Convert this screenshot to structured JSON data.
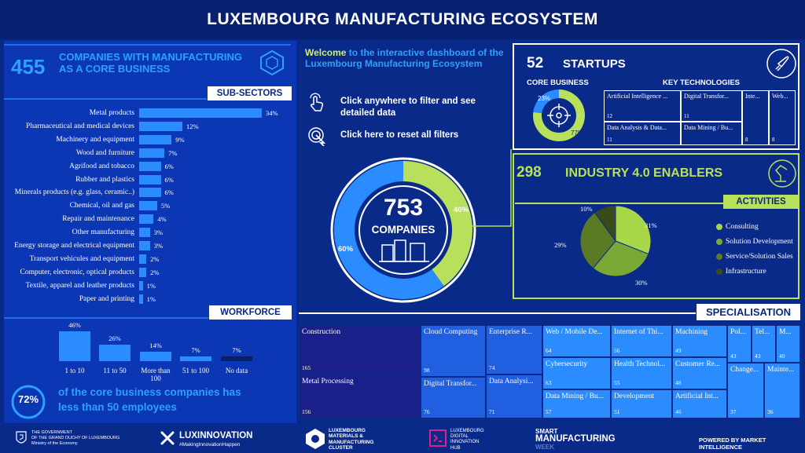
{
  "title": "LUXEMBOURG MANUFACTURING ECOSYSTEM",
  "core": {
    "count": "455",
    "label_line1": "COMPANIES WITH MANUFACTURING",
    "label_line2_prefix": "AS A ",
    "label_line2_strong": "CORE BUSINESS"
  },
  "subsectors": {
    "header": "SUB-SECTORS",
    "items": [
      {
        "label": "Metal products",
        "pct": 34,
        "text": "34%"
      },
      {
        "label": "Pharmaceutical and medical devices",
        "pct": 12,
        "text": "12%"
      },
      {
        "label": "Machinery and equipment",
        "pct": 9,
        "text": "9%"
      },
      {
        "label": "Wood and furniture",
        "pct": 7,
        "text": "7%"
      },
      {
        "label": "Agrifood and tobacco",
        "pct": 6,
        "text": "6%"
      },
      {
        "label": "Rubber and plastics",
        "pct": 6,
        "text": "6%"
      },
      {
        "label": "Minerals products (e.g. glass, ceramic..)",
        "pct": 6,
        "text": "6%"
      },
      {
        "label": "Chemical, oil and gas",
        "pct": 5,
        "text": "5%"
      },
      {
        "label": "Repair and maintenance",
        "pct": 4,
        "text": "4%"
      },
      {
        "label": "Other manufacturing",
        "pct": 3,
        "text": "3%"
      },
      {
        "label": "Energy storage and electrical equipment",
        "pct": 3,
        "text": "3%"
      },
      {
        "label": "Transport vehicules and equipment",
        "pct": 2,
        "text": "2%"
      },
      {
        "label": "Computer, electronic, optical products",
        "pct": 2,
        "text": "2%"
      },
      {
        "label": "Textile, apparel and leather products",
        "pct": 1,
        "text": "1%"
      },
      {
        "label": "Paper and printing",
        "pct": 1,
        "text": "1%"
      }
    ]
  },
  "workforce": {
    "header": "WORKFORCE",
    "items": [
      {
        "label": "1 to 10",
        "pct": 46,
        "text": "46%",
        "color": "#2b8cff"
      },
      {
        "label": "11 to 50",
        "pct": 26,
        "text": "26%",
        "color": "#2b8cff"
      },
      {
        "label": "More than 100",
        "pct": 14,
        "text": "14%",
        "color": "#2b8cff"
      },
      {
        "label": "51 to 100",
        "pct": 7,
        "text": "7%",
        "color": "#2b8cff"
      },
      {
        "label": "No data",
        "pct": 7,
        "text": "7%",
        "color": "#0a1f66"
      }
    ],
    "stat_pct": "72%",
    "stat_line1": "of the core business companies has",
    "stat_line2": "less than 50 employees"
  },
  "welcome": {
    "strong": "Welcome",
    "rest": " to the interactive dashboard of the Luxembourg Manufacturing Ecosystem",
    "instr1": "Click anywhere to filter and see detailed data",
    "instr2": "Click here to reset all filters"
  },
  "total": {
    "count": "753",
    "label": "COMPANIES",
    "green_pct": 40,
    "green_text": "40%",
    "blue_text": "60%",
    "green_color": "#b8e05a",
    "blue_color": "#2b8cff"
  },
  "startups": {
    "count": "52",
    "label": "STARTUPS",
    "core_head": "CORE BUSINESS",
    "tech_head": "KEY TECHNOLOGIES",
    "core_pct_small": "23%",
    "core_pct_big": "77%",
    "core_small_fraction": 0.23,
    "tech": [
      {
        "name": "Artificial Intelligence ...",
        "num": "12"
      },
      {
        "name": "Digital Transfor...",
        "num": "11"
      },
      {
        "name": "Inte...",
        "num": "8"
      },
      {
        "name": "Web...",
        "num": "8"
      },
      {
        "name": "Data Analysis & Data...",
        "num": "11"
      },
      {
        "name": "Data Mining / Bu...",
        "num": ""
      }
    ]
  },
  "enablers": {
    "count": "298",
    "label": "INDUSTRY 4.0 ENABLERS",
    "activities_head": "ACTIVITIES",
    "chart_data": {
      "type": "pie",
      "categories": [
        "Consulting",
        "Solution Development",
        "Service/Solution Sales",
        "Infrastructure"
      ],
      "values": [
        31,
        30,
        29,
        10
      ],
      "labels": [
        "31%",
        "30%",
        "29%",
        "10%"
      ],
      "colors": [
        "#a8d84a",
        "#7aa834",
        "#5a7a26",
        "#3a4a1c"
      ]
    }
  },
  "specialisation": {
    "header": "SPECIALISATION",
    "cells": [
      {
        "name": "Construction",
        "num": "165"
      },
      {
        "name": "Metal Processing",
        "num": "156"
      },
      {
        "name": "Cloud Computing",
        "num": "98"
      },
      {
        "name": "Digital Transfor...",
        "num": "76"
      },
      {
        "name": "Enterprise R...",
        "num": "74"
      },
      {
        "name": "Data Analysi...",
        "num": "71"
      },
      {
        "name": "Web / Mobile De...",
        "num": "64"
      },
      {
        "name": "Cybersecurity",
        "num": "63"
      },
      {
        "name": "Data Mining / Bu...",
        "num": "57"
      },
      {
        "name": "Internet of Thi...",
        "num": "56"
      },
      {
        "name": "Health Technol...",
        "num": "55"
      },
      {
        "name": "Development",
        "num": "51"
      },
      {
        "name": "Machining",
        "num": "49"
      },
      {
        "name": "Customer Re...",
        "num": "48"
      },
      {
        "name": "Artificial Int...",
        "num": "46"
      },
      {
        "name": "Pol...",
        "num": "43"
      },
      {
        "name": "Tel...",
        "num": "43"
      },
      {
        "name": "M...",
        "num": "40"
      },
      {
        "name": "Change...",
        "num": "37"
      },
      {
        "name": "Mainte...",
        "num": "36"
      }
    ]
  },
  "footer": {
    "gov1": "THE GOVERNMENT",
    "gov2": "OF THE GRAND DUCHY OF LUXEMBOURG",
    "gov3": "Ministry of the Economy",
    "luxinno": "LUXINNOVATION",
    "luxinno_tag": "#MakingInnovationHappen",
    "cluster1": "LUXEMBOURG",
    "cluster2": "MATERIALS &",
    "cluster3": "MANUFACTURING",
    "cluster4": "CLUSTER",
    "hub1": "LUXEMBOURG",
    "hub2": "DIGITAL",
    "hub3": "INNOVATION",
    "hub4": "HUB",
    "smw1": "SMART",
    "smw2": "MANUFACTURING",
    "smw3": "WEEK",
    "powered": "POWERED BY MARKET INTELLIGENCE"
  }
}
